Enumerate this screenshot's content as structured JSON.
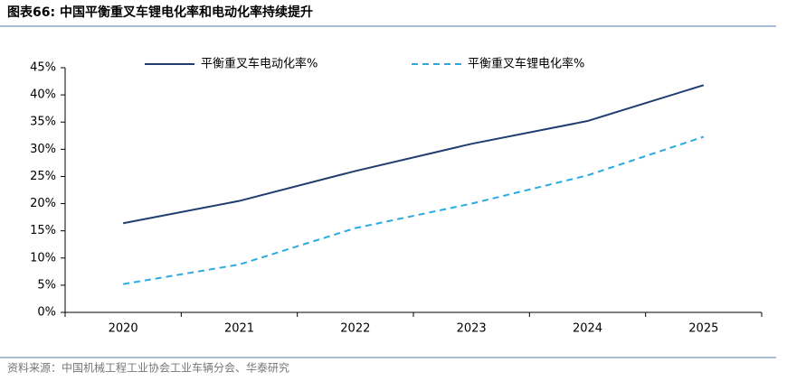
{
  "chart_data": {
    "type": "line",
    "title": "图表66:  中国平衡重叉车锂电化率和电动化率持续提升",
    "source": "资料来源：中国机械工程工业协会工业车辆分会、华泰研究",
    "categories": [
      "2020",
      "2021",
      "2022",
      "2023",
      "2024",
      "2025"
    ],
    "series": [
      {
        "name": "平衡重叉车电动化率%",
        "color": "#1f3d6e",
        "dashed": false,
        "values": [
          16.4,
          20.5,
          26,
          31,
          35.2,
          41.8
        ]
      },
      {
        "name": "平衡重叉车锂电化率%",
        "color": "#29abe2",
        "dashed": true,
        "values": [
          5.2,
          8.8,
          15.5,
          20,
          25.2,
          32.3
        ]
      }
    ],
    "ylim": [
      0,
      45
    ],
    "yticks": [
      {
        "value": 0,
        "label": "0%"
      },
      {
        "value": 5,
        "label": "5%"
      },
      {
        "value": 10,
        "label": "10%"
      },
      {
        "value": 15,
        "label": "15%"
      },
      {
        "value": 20,
        "label": "20%"
      },
      {
        "value": 25,
        "label": "25%"
      },
      {
        "value": 30,
        "label": "30%"
      },
      {
        "value": 35,
        "label": "35%"
      },
      {
        "value": 40,
        "label": "40%"
      },
      {
        "value": 45,
        "label": "45%"
      }
    ],
    "grid": false,
    "legend": "top"
  }
}
